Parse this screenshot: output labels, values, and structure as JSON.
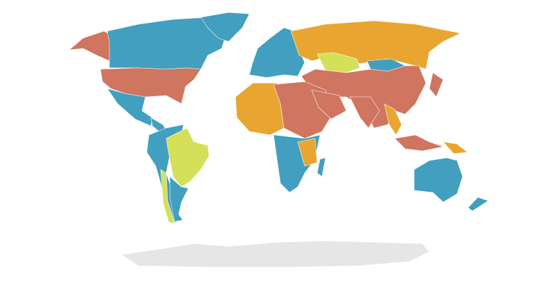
{
  "map": {
    "colors": [
      "#429fbf",
      "#d07560",
      "#e8a630",
      "#d5e05a",
      "#e6e6e6"
    ]
  }
}
